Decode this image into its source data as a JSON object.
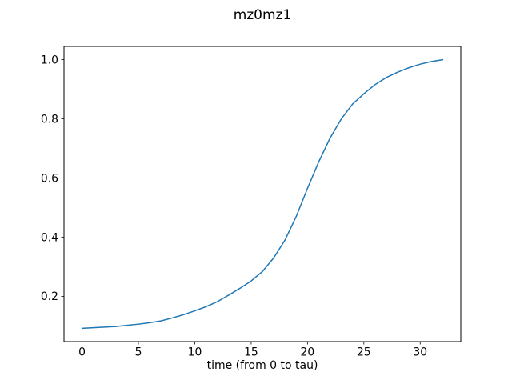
{
  "figure": {
    "background": "#ffffff"
  },
  "chart_data": {
    "type": "line",
    "title": "mz0mz1",
    "xlabel": "time (from 0 to tau)",
    "ylabel": "",
    "grid": false,
    "legend": null,
    "axis_color": "#000000",
    "text_color": "#000000",
    "xlim": [
      -1.6,
      33.6
    ],
    "ylim": [
      0.047,
      1.045
    ],
    "xticks": [
      0,
      5,
      10,
      15,
      20,
      25,
      30
    ],
    "xtick_labels": [
      "0",
      "5",
      "10",
      "15",
      "20",
      "25",
      "30"
    ],
    "yticks": [
      0.2,
      0.4,
      0.6,
      0.8,
      1.0
    ],
    "ytick_labels": [
      "0.2",
      "0.4",
      "0.6",
      "0.8",
      "1.0"
    ],
    "series": [
      {
        "name": "mz0mz1",
        "color": "#1f77b4",
        "line_width": 1.5,
        "x": [
          0,
          1,
          2,
          3,
          4,
          5,
          6,
          7,
          8,
          9,
          10,
          11,
          12,
          13,
          14,
          15,
          16,
          17,
          18,
          19,
          20,
          21,
          22,
          23,
          24,
          25,
          26,
          27,
          28,
          29,
          30,
          31,
          32
        ],
        "y": [
          0.092,
          0.094,
          0.096,
          0.098,
          0.102,
          0.106,
          0.111,
          0.117,
          0.127,
          0.138,
          0.151,
          0.165,
          0.182,
          0.204,
          0.227,
          0.252,
          0.284,
          0.33,
          0.39,
          0.47,
          0.565,
          0.655,
          0.735,
          0.8,
          0.85,
          0.885,
          0.916,
          0.94,
          0.958,
          0.973,
          0.985,
          0.994,
          1.0
        ]
      }
    ]
  }
}
